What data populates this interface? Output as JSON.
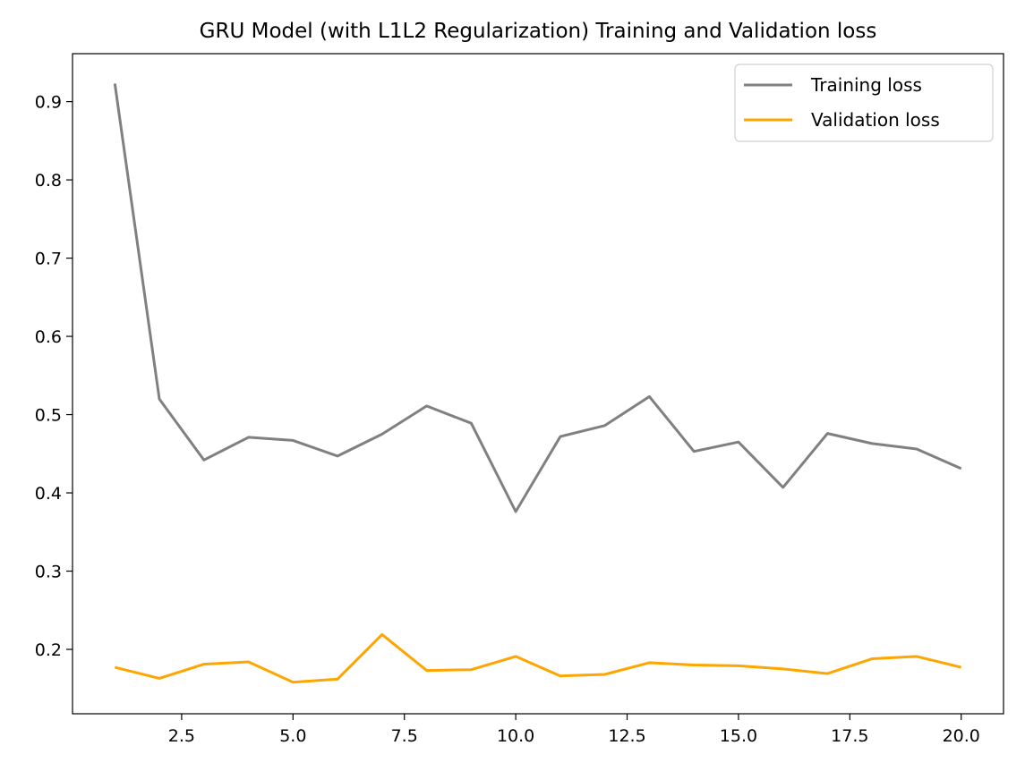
{
  "chart_data": {
    "type": "line",
    "title": "GRU Model (with L1L2 Regularization) Training and Validation loss",
    "xlabel": "",
    "ylabel": "",
    "x": [
      1,
      2,
      3,
      4,
      5,
      6,
      7,
      8,
      9,
      10,
      11,
      12,
      13,
      14,
      15,
      16,
      17,
      18,
      19,
      20
    ],
    "series": [
      {
        "name": "Training loss",
        "color": "#808080",
        "values": [
          0.923,
          0.52,
          0.442,
          0.471,
          0.467,
          0.447,
          0.475,
          0.511,
          0.489,
          0.376,
          0.472,
          0.486,
          0.523,
          0.453,
          0.465,
          0.407,
          0.476,
          0.463,
          0.456,
          0.431
        ]
      },
      {
        "name": "Validation loss",
        "color": "#ffa500",
        "values": [
          0.177,
          0.163,
          0.181,
          0.184,
          0.158,
          0.162,
          0.219,
          0.173,
          0.174,
          0.191,
          0.166,
          0.168,
          0.183,
          0.18,
          0.179,
          0.175,
          0.169,
          0.188,
          0.191,
          0.177
        ]
      }
    ],
    "xlim": [
      0.05,
      20.95
    ],
    "ylim": [
      0.1177,
      0.9613
    ],
    "xticks": [
      2.5,
      5.0,
      7.5,
      10.0,
      12.5,
      15.0,
      17.5,
      20.0
    ],
    "xtick_labels": [
      "2.5",
      "5.0",
      "7.5",
      "10.0",
      "12.5",
      "15.0",
      "17.5",
      "20.0"
    ],
    "yticks": [
      0.2,
      0.3,
      0.4,
      0.5,
      0.6,
      0.7,
      0.8,
      0.9
    ],
    "ytick_labels": [
      "0.2",
      "0.3",
      "0.4",
      "0.5",
      "0.6",
      "0.7",
      "0.8",
      "0.9"
    ],
    "grid": false,
    "legend_position": "top-right"
  }
}
